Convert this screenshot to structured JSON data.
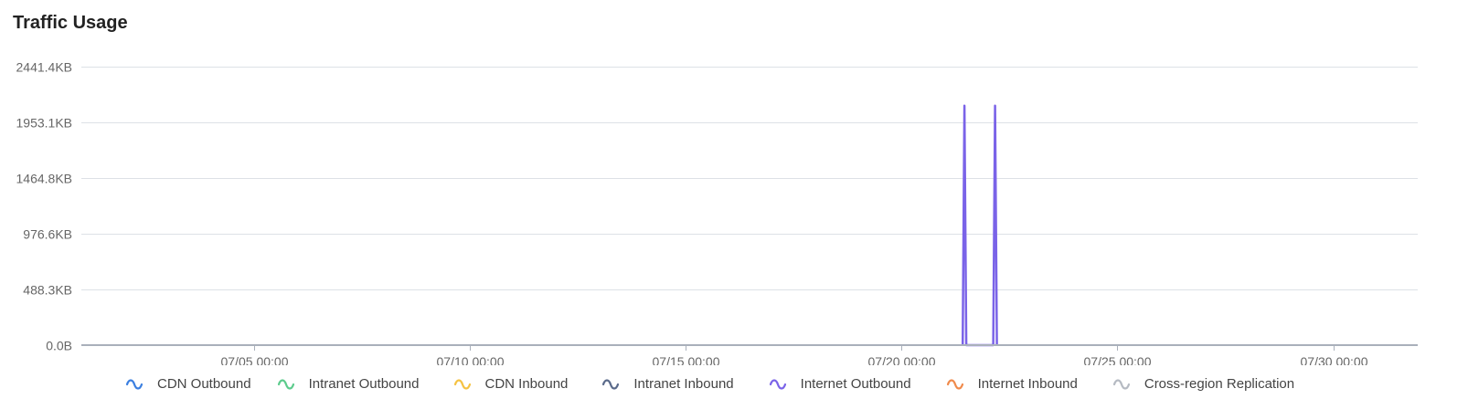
{
  "header": {
    "title": "Traffic Usage"
  },
  "chart_data": {
    "type": "line",
    "title": "Traffic Usage",
    "xlabel": "",
    "ylabel": "",
    "y_ticks": [
      "0.0B",
      "488.3KB",
      "976.6KB",
      "1464.8KB",
      "1953.1KB",
      "2441.4KB"
    ],
    "y_tick_values": [
      0,
      488.3,
      976.6,
      1464.8,
      1953.1,
      2441.4
    ],
    "ylim": [
      0,
      2441.4
    ],
    "y_unit": "KB",
    "x_ticks": [
      "07/05 00:00",
      "07/10 00:00",
      "07/15 00:00",
      "07/20 00:00",
      "07/25 00:00",
      "07/30 00:00"
    ],
    "x_tick_values": [
      "07-05 00:00",
      "07-10 00:00",
      "07-15 00:00",
      "07-20 00:00",
      "07-25 00:00",
      "07-30 00:00"
    ],
    "xlim": [
      "07-01 00:00",
      "07-31 23:00"
    ],
    "grid": true,
    "legend_position": "bottom",
    "series": [
      {
        "name": "CDN Outbound",
        "color": "#3b7fe0",
        "points": []
      },
      {
        "name": "Intranet Outbound",
        "color": "#5ccb8c",
        "points": []
      },
      {
        "name": "CDN Inbound",
        "color": "#f5c242",
        "points": []
      },
      {
        "name": "Intranet Inbound",
        "color": "#5a6a8a",
        "points": []
      },
      {
        "name": "Internet Outbound",
        "color": "#7a63e8",
        "points": [
          {
            "x": "07-21 10:00",
            "y": 0
          },
          {
            "x": "07-21 11:00",
            "y": 2100
          },
          {
            "x": "07-21 12:00",
            "y": 0
          },
          {
            "x": "07-22 03:00",
            "y": 0
          },
          {
            "x": "07-22 04:00",
            "y": 2100
          },
          {
            "x": "07-22 05:00",
            "y": 0
          }
        ]
      },
      {
        "name": "Internet Inbound",
        "color": "#f08a4b",
        "points": []
      },
      {
        "name": "Cross-region Replication",
        "color": "#b5bac2",
        "points": []
      }
    ]
  }
}
